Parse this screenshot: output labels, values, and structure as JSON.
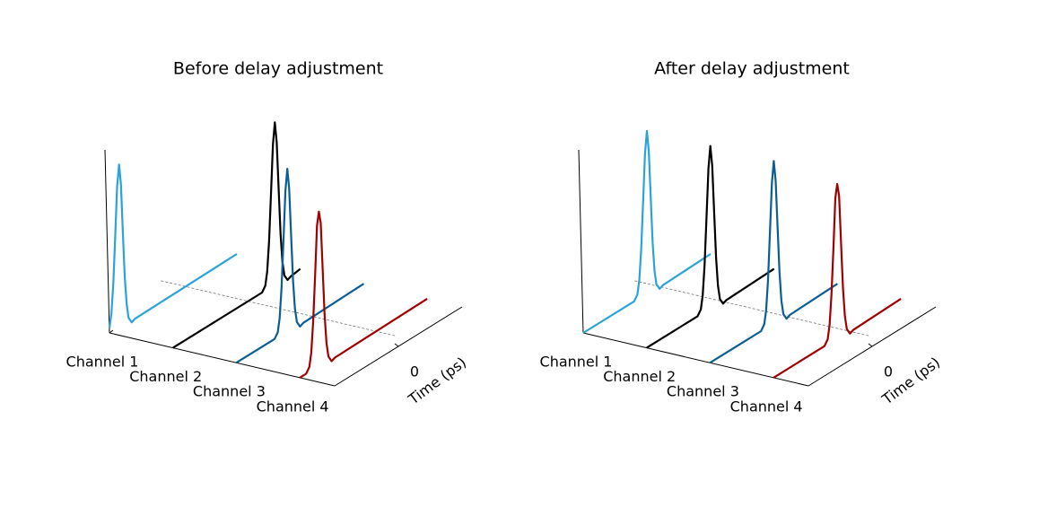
{
  "chart_data": [
    {
      "type": "waterfall",
      "title": "Before delay adjustment",
      "categories": [
        "Channel 1",
        "Channel 2",
        "Channel 3",
        "Channel 4"
      ],
      "x_label": "Time (ps)",
      "xlim": [
        -10,
        10
      ],
      "xticks": [
        0
      ],
      "ylim": [
        0,
        1.05
      ],
      "series": [
        {
          "color": "#2ba3d8",
          "x": [
            -10,
            -9.7,
            -9.4,
            -9.1,
            -8.8,
            -8.5,
            -8.2,
            -7.9,
            -7.6,
            -7.3,
            -7.0,
            -6.5,
            -6.0,
            10
          ],
          "values": [
            0.03,
            0.11,
            0.29,
            0.57,
            0.87,
            1,
            0.87,
            0.57,
            0.29,
            0.11,
            0.02,
            -0.02,
            -0.01,
            0
          ]
        },
        {
          "color": "#000000",
          "x": [
            -10,
            4,
            4.5,
            4.8,
            5.1,
            5.4,
            5.7,
            6,
            6.3,
            6.6,
            6.9,
            7.2,
            7.5,
            8,
            8.5,
            10
          ],
          "values": [
            0,
            0,
            0.03,
            0.11,
            0.29,
            0.57,
            0.87,
            1,
            0.87,
            0.57,
            0.29,
            0.11,
            0.02,
            -0.02,
            -0.01,
            0
          ]
        },
        {
          "color": "#0b5e94",
          "x": [
            -10,
            -4,
            -3.5,
            -3.2,
            -2.9,
            -2.6,
            -2.3,
            -2,
            -1.7,
            -1.4,
            -1.1,
            -0.8,
            -0.5,
            0,
            0.5,
            10
          ],
          "values": [
            0,
            0,
            0.03,
            0.11,
            0.29,
            0.57,
            0.87,
            1,
            0.87,
            0.57,
            0.29,
            0.11,
            0.02,
            -0.02,
            -0.01,
            0
          ]
        },
        {
          "color": "#a00000",
          "x": [
            -10,
            -9,
            -8.5,
            -8.2,
            -7.9,
            -7.6,
            -7.3,
            -7,
            -6.7,
            -6.4,
            -6.1,
            -5.8,
            -5.5,
            -5,
            -4.5,
            10
          ],
          "values": [
            0,
            0,
            0.03,
            0.11,
            0.29,
            0.57,
            0.87,
            0.95,
            0.87,
            0.57,
            0.29,
            0.11,
            0.02,
            -0.02,
            -0.01,
            0
          ]
        }
      ]
    },
    {
      "type": "waterfall",
      "title": "After delay adjustment",
      "categories": [
        "Channel 1",
        "Channel 2",
        "Channel 3",
        "Channel 4"
      ],
      "x_label": "Time (ps)",
      "xlim": [
        -10,
        10
      ],
      "xticks": [
        0
      ],
      "ylim": [
        0,
        1.05
      ],
      "series": [
        {
          "color": "#2ba3d8",
          "x": [
            -10,
            -2,
            -1.5,
            -1.2,
            -0.9,
            -0.6,
            -0.3,
            0,
            0.3,
            0.6,
            0.9,
            1.2,
            1.5,
            2,
            2.5,
            10
          ],
          "values": [
            0,
            0,
            0.03,
            0.11,
            0.29,
            0.57,
            0.87,
            1,
            0.87,
            0.57,
            0.29,
            0.11,
            0.02,
            -0.02,
            -0.01,
            0
          ]
        },
        {
          "color": "#000000",
          "x": [
            -10,
            -2,
            -1.5,
            -1.2,
            -0.9,
            -0.6,
            -0.3,
            0,
            0.3,
            0.6,
            0.9,
            1.2,
            1.5,
            2,
            2.5,
            10
          ],
          "values": [
            0,
            0,
            0.03,
            0.11,
            0.29,
            0.57,
            0.87,
            1,
            0.87,
            0.57,
            0.29,
            0.11,
            0.02,
            -0.02,
            -0.01,
            0
          ]
        },
        {
          "color": "#0b5e94",
          "x": [
            -10,
            -2,
            -1.5,
            -1.2,
            -0.9,
            -0.6,
            -0.3,
            0,
            0.3,
            0.6,
            0.9,
            1.2,
            1.5,
            2,
            2.5,
            10
          ],
          "values": [
            0,
            0,
            0.03,
            0.11,
            0.29,
            0.57,
            0.87,
            1,
            0.87,
            0.57,
            0.29,
            0.11,
            0.02,
            -0.02,
            -0.01,
            0
          ]
        },
        {
          "color": "#a00000",
          "x": [
            -10,
            -2,
            -1.5,
            -1.2,
            -0.9,
            -0.6,
            -0.3,
            0,
            0.3,
            0.6,
            0.9,
            1.2,
            1.5,
            2,
            2.5,
            10
          ],
          "values": [
            0,
            0,
            0.03,
            0.11,
            0.29,
            0.57,
            0.87,
            0.95,
            0.87,
            0.57,
            0.29,
            0.11,
            0.02,
            -0.02,
            -0.01,
            0
          ]
        }
      ]
    }
  ]
}
